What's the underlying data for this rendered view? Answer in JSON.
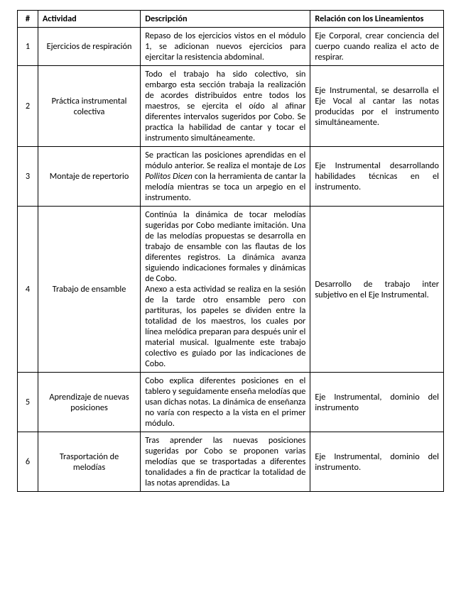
{
  "headers": {
    "num": "#",
    "actividad": "Actividad",
    "descripcion": "Descripción",
    "relacion": "Relación con los Lineamientos"
  },
  "rows": [
    {
      "num": "1",
      "actividad": "Ejercicios de respiración",
      "descripcion": "Repaso de los ejercicios vistos en el módulo 1, se adicionan nuevos ejercicios para ejercitar la resistencia abdominal.",
      "relacion": "Eje Corporal, crear conciencia del cuerpo cuando realiza el acto de respirar."
    },
    {
      "num": "2",
      "actividad": "Práctica instrumental colectiva",
      "descripcion": "Todo el trabajo ha sido colectivo, sin embargo esta sección trabaja la realización de acordes distribuidos entre todos los maestros, se ejercita el oído al afinar diferentes intervalos sugeridos por Cobo. Se practica la habilidad de cantar y tocar el instrumento simultáneamente.",
      "relacion": "Eje Instrumental, se desarrolla el Eje Vocal al cantar las notas producidas por el instrumento simultáneamente."
    },
    {
      "num": "3",
      "actividad": "Montaje de repertorio",
      "desc_pre": "Se practican las posiciones aprendidas en el módulo anterior. Se realiza el montaje de ",
      "desc_italic": "Los Pollitos Dicen",
      "desc_post": " con la herramienta de cantar la melodía mientras se toca un arpegio en el instrumento.",
      "relacion": "Eje Instrumental desarrollando habilidades técnicas en el instrumento."
    },
    {
      "num": "4",
      "actividad": "Trabajo de ensamble",
      "desc_p1": "Continúa la dinámica de tocar melodías sugeridas por Cobo mediante imitación. Una de las melodías propuestas se desarrolla en trabajo de ensamble con las flautas de los diferentes registros. La dinámica avanza siguiendo indicaciones formales y dinámicas de Cobo.",
      "desc_p2": "Anexo a esta actividad se realiza en la sesión de la tarde otro ensamble pero con partituras, los papeles se dividen entre la totalidad de los maestros, los cuales por línea melódica preparan para después unir el material musical. Igualmente este trabajo colectivo es guiado por las indicaciones de Cobo.",
      "relacion": "Desarrollo de trabajo inter subjetivo en el Eje Instrumental."
    },
    {
      "num": "5",
      "actividad": "Aprendizaje de nuevas posiciones",
      "descripcion": "Cobo explica diferentes posiciones en el tablero y seguidamente enseña melodías que usan dichas notas. La dinámica de enseñanza no varía con respecto a la vista en el primer módulo.",
      "relacion": "Eje Instrumental, dominio del instrumento"
    },
    {
      "num": "6",
      "actividad": "Trasportación de melodías",
      "descripcion": "Tras aprender las nuevas posiciones sugeridas por Cobo se proponen varias melodías que se trasportadas a diferentes tonalidades a fin de practicar la totalidad de las notas aprendidas. La",
      "relacion": "Eje Instrumental, dominio del instrumento."
    }
  ]
}
